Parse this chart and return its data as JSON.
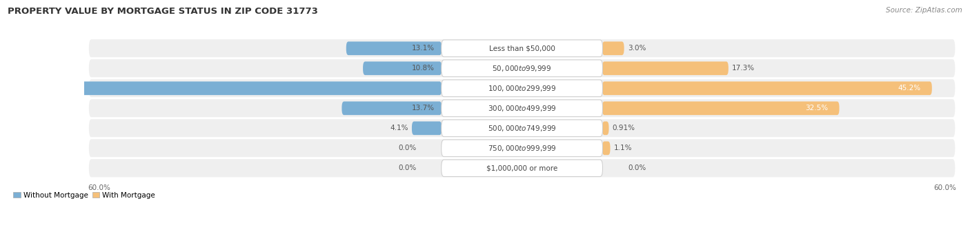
{
  "title": "PROPERTY VALUE BY MORTGAGE STATUS IN ZIP CODE 31773",
  "source": "Source: ZipAtlas.com",
  "categories": [
    "Less than $50,000",
    "$50,000 to $99,999",
    "$100,000 to $299,999",
    "$300,000 to $499,999",
    "$500,000 to $749,999",
    "$750,000 to $999,999",
    "$1,000,000 or more"
  ],
  "without_mortgage": [
    13.1,
    10.8,
    58.2,
    13.7,
    4.1,
    0.0,
    0.0
  ],
  "with_mortgage": [
    3.0,
    17.3,
    45.2,
    32.5,
    0.91,
    1.1,
    0.0
  ],
  "without_mortgage_color": "#7bafd4",
  "with_mortgage_color": "#f5c07a",
  "row_bg_color": "#efefef",
  "axis_max": 60.0,
  "title_fontsize": 9.5,
  "source_fontsize": 7.5,
  "cat_label_fontsize": 7.5,
  "value_fontsize": 7.5,
  "legend_fontsize": 7.5
}
